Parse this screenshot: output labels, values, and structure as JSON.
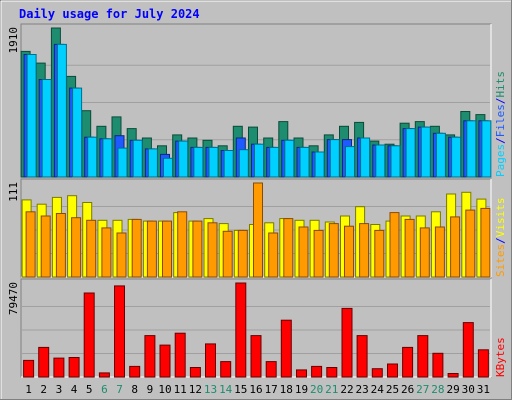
{
  "colors": {
    "background": "#c0c0c0",
    "plot_background": "#c0c0c0",
    "title": "#0000ff",
    "hits": "#1e8c6e",
    "files": "#1e5aff",
    "pages": "#00d0ff",
    "visits": "#ff9a00",
    "sites": "#ffff00",
    "kbytes": "#ff0000",
    "weekend_label": "#1e8c6e",
    "weekday_label": "#000000"
  },
  "chart_data": {
    "type": "bar",
    "title": "Daily usage for July 2024",
    "categories": [
      "1",
      "2",
      "3",
      "4",
      "5",
      "6",
      "7",
      "8",
      "9",
      "10",
      "11",
      "12",
      "13",
      "14",
      "15",
      "16",
      "17",
      "18",
      "19",
      "20",
      "21",
      "22",
      "23",
      "24",
      "25",
      "26",
      "27",
      "28",
      "29",
      "30",
      "31"
    ],
    "weekend_days": [
      "6",
      "7",
      "13",
      "14",
      "20",
      "21",
      "27",
      "28"
    ],
    "panels": [
      {
        "name": "hits-files-pages",
        "max_label": "1910",
        "ylim": [
          0,
          1910
        ],
        "grid": true,
        "side_labels": [
          {
            "text": "Pages",
            "color_key": "pages"
          },
          {
            "text": "/",
            "color_key": "title"
          },
          {
            "text": "Files",
            "color_key": "files"
          },
          {
            "text": "/",
            "color_key": "title"
          },
          {
            "text": "Hits",
            "color_key": "hits"
          }
        ],
        "series": [
          {
            "name": "Hits",
            "color_key": "hits",
            "values": [
              1610,
              1460,
              1910,
              1290,
              850,
              650,
              770,
              620,
              500,
              400,
              540,
              500,
              470,
              400,
              650,
              640,
              500,
              710,
              500,
              400,
              540,
              650,
              700,
              460,
              420,
              690,
              710,
              650,
              540,
              840,
              800
            ]
          },
          {
            "name": "Files",
            "color_key": "files",
            "values": [
              1570,
              1250,
              1700,
              1140,
              510,
              490,
              530,
              470,
              360,
              290,
              460,
              380,
              380,
              340,
              500,
              420,
              380,
              470,
              380,
              320,
              480,
              480,
              500,
              410,
              400,
              620,
              640,
              560,
              510,
              720,
              720
            ]
          },
          {
            "name": "Pages",
            "color_key": "pages",
            "values": [
              1570,
              1250,
              1700,
              1140,
              510,
              490,
              370,
              470,
              360,
              240,
              460,
              380,
              380,
              340,
              350,
              420,
              380,
              470,
              380,
              320,
              480,
              390,
              500,
              410,
              400,
              620,
              640,
              560,
              510,
              720,
              720
            ]
          }
        ]
      },
      {
        "name": "visits-sites",
        "max_label": "111",
        "ylim": [
          0,
          111
        ],
        "grid": true,
        "side_labels": [
          {
            "text": "Sites",
            "color_key": "visits"
          },
          {
            "text": "/",
            "color_key": "title"
          },
          {
            "text": "Visits",
            "color_key": "sites"
          }
        ],
        "series": [
          {
            "name": "Sites",
            "color_key": "sites",
            "values": [
              91,
              86,
              94,
              96,
              88,
              67,
              67,
              68,
              66,
              66,
              76,
              66,
              69,
              63,
              55,
              62,
              64,
              69,
              67,
              67,
              65,
              72,
              83,
              62,
              66,
              72,
              72,
              77,
              98,
              100,
              92
            ]
          },
          {
            "name": "Visits",
            "color_key": "visits",
            "values": [
              77,
              72,
              75,
              70,
              67,
              58,
              52,
              68,
              66,
              66,
              77,
              66,
              64,
              54,
              55,
              111,
              52,
              69,
              59,
              55,
              63,
              60,
              63,
              55,
              76,
              68,
              58,
              59,
              71,
              79,
              81
            ]
          }
        ]
      },
      {
        "name": "kbytes",
        "max_label": "79470",
        "ylim": [
          0,
          79470
        ],
        "grid": true,
        "side_labels": [
          {
            "text": "KBytes",
            "color_key": "kbytes"
          }
        ],
        "series": [
          {
            "name": "KBytes",
            "color_key": "kbytes",
            "values": [
              14000,
              25000,
              16000,
              16500,
              71000,
              3500,
              77000,
              9000,
              35000,
              27000,
              37000,
              8000,
              28000,
              13000,
              80000,
              35000,
              13000,
              48000,
              6000,
              9000,
              8000,
              58000,
              35000,
              7000,
              11000,
              25000,
              35000,
              20000,
              3000,
              46000,
              23000
            ]
          }
        ]
      }
    ]
  }
}
